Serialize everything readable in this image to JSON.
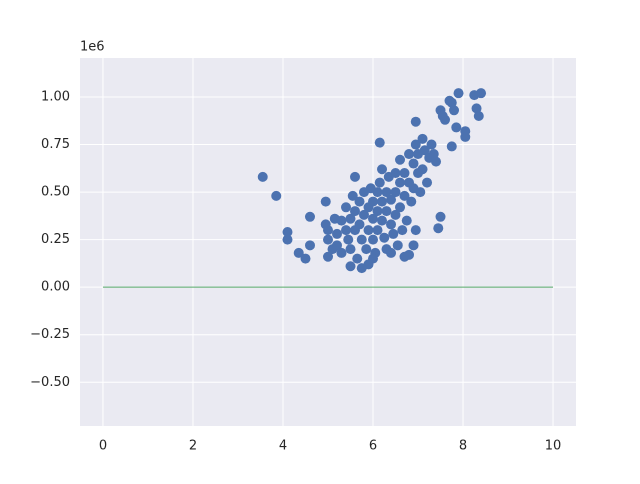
{
  "chart_data": {
    "type": "scatter",
    "y_offset_label": "1e6",
    "xlim": [
      -0.51,
      10.51
    ],
    "xticks": [
      0,
      2,
      4,
      6,
      8,
      10
    ],
    "ylim": [
      -0.73,
      1.205
    ],
    "yticks": [
      {
        "value": -0.5,
        "label": "−0.50"
      },
      {
        "value": -0.25,
        "label": "−0.25"
      },
      {
        "value": 0,
        "label": "0.00"
      },
      {
        "value": 0.25,
        "label": "0.25"
      },
      {
        "value": 0.5,
        "label": "0.50"
      },
      {
        "value": 0.75,
        "label": "0.75"
      },
      {
        "value": 1.0,
        "label": "1.00"
      }
    ],
    "grid": true,
    "series": [
      {
        "type": "scatter",
        "color": "#4c72b0",
        "x": [
          3.55,
          3.85,
          4.1,
          4.1,
          4.35,
          4.5,
          4.6,
          4.6,
          4.95,
          5.5,
          5.75,
          5.9,
          6.15,
          7.45,
          7.5,
          7.75,
          7.85,
          8.05,
          8.05,
          8.25,
          8.3,
          8.35,
          8.4,
          7.9,
          7.75,
          7.7,
          7.5,
          7.55,
          7.6,
          7.8,
          6.95,
          5.2,
          5.2,
          5.3,
          5.3,
          5.4,
          5.4,
          5.45,
          5.5,
          5.5,
          5.55,
          5.6,
          5.6,
          5.6,
          5.65,
          5.7,
          5.7,
          5.75,
          5.8,
          5.8,
          5.85,
          5.9,
          5.9,
          5.95,
          6.0,
          6.0,
          6.0,
          6.05,
          6.1,
          6.1,
          6.1,
          6.15,
          6.2,
          6.2,
          6.2,
          6.25,
          6.3,
          6.3,
          6.3,
          6.35,
          6.4,
          6.4,
          6.45,
          6.5,
          6.5,
          6.5,
          6.55,
          6.6,
          6.6,
          6.6,
          6.65,
          6.7,
          6.7,
          6.75,
          6.8,
          6.8,
          6.8,
          6.85,
          6.9,
          6.9,
          6.95,
          6.95,
          7.0,
          7.0,
          7.05,
          7.1,
          7.1,
          7.15,
          7.2,
          7.25,
          7.3,
          7.35,
          7.4,
          6.9,
          6.7,
          6.4,
          6.0,
          5.0,
          5.0,
          4.95,
          5.1,
          5.0,
          5.15
        ],
        "values": [
          0.58,
          0.48,
          0.29,
          0.25,
          0.18,
          0.15,
          0.37,
          0.22,
          0.45,
          0.11,
          0.1,
          0.12,
          0.76,
          0.31,
          0.37,
          0.74,
          0.84,
          0.79,
          0.82,
          1.01,
          0.94,
          0.9,
          1.02,
          1.02,
          0.97,
          0.98,
          0.93,
          0.9,
          0.88,
          0.93,
          0.87,
          0.28,
          0.22,
          0.35,
          0.18,
          0.42,
          0.3,
          0.25,
          0.36,
          0.2,
          0.48,
          0.58,
          0.4,
          0.3,
          0.15,
          0.45,
          0.33,
          0.25,
          0.5,
          0.38,
          0.2,
          0.42,
          0.3,
          0.52,
          0.36,
          0.45,
          0.25,
          0.18,
          0.5,
          0.4,
          0.3,
          0.55,
          0.35,
          0.45,
          0.62,
          0.26,
          0.5,
          0.4,
          0.2,
          0.58,
          0.33,
          0.46,
          0.28,
          0.6,
          0.5,
          0.38,
          0.22,
          0.67,
          0.55,
          0.42,
          0.3,
          0.6,
          0.48,
          0.35,
          0.7,
          0.55,
          0.17,
          0.45,
          0.65,
          0.52,
          0.75,
          0.3,
          0.6,
          0.7,
          0.5,
          0.78,
          0.62,
          0.72,
          0.55,
          0.68,
          0.75,
          0.7,
          0.66,
          0.22,
          0.16,
          0.18,
          0.15,
          0.3,
          0.25,
          0.33,
          0.2,
          0.16,
          0.36
        ]
      },
      {
        "type": "line",
        "color": "#55a868",
        "x": [
          0,
          10
        ],
        "values": [
          0,
          0
        ]
      }
    ]
  }
}
